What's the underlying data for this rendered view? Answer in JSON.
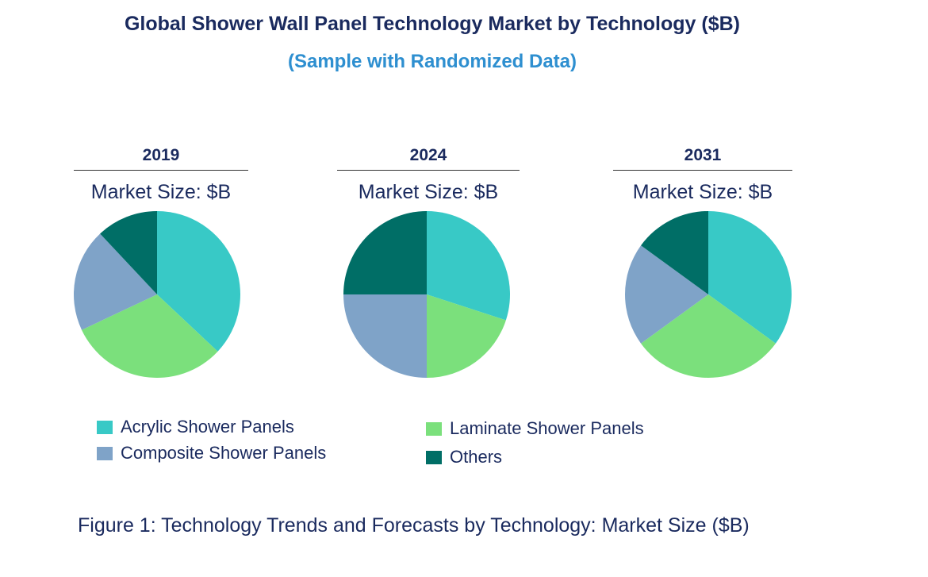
{
  "title": "Global Shower Wall Panel Technology Market by Technology ($B)",
  "subtitle": "(Sample with Randomized Data)",
  "caption": "Figure 1: Technology Trends and Forecasts by Technology: Market Size ($B)",
  "colors": {
    "acrylic": "#38c9c6",
    "laminate": "#7be07c",
    "composite": "#7fa3c8",
    "others": "#006e66",
    "title": "#1a2a5e",
    "subtitle": "#2e8fd0"
  },
  "legend": [
    {
      "label": "Acrylic Shower Panels",
      "key": "acrylic"
    },
    {
      "label": "Composite Shower Panels",
      "key": "composite"
    },
    {
      "label": "Laminate Shower Panels",
      "key": "laminate"
    },
    {
      "label": "Others",
      "key": "others"
    }
  ],
  "chart_data": [
    {
      "type": "pie",
      "title": "2019",
      "subtitle": "Market Size: $B",
      "categories": [
        "Acrylic Shower Panels",
        "Laminate Shower Panels",
        "Composite Shower Panels",
        "Others"
      ],
      "values": [
        37,
        31,
        20,
        12
      ]
    },
    {
      "type": "pie",
      "title": "2024",
      "subtitle": "Market Size: $B",
      "categories": [
        "Acrylic Shower Panels",
        "Laminate Shower Panels",
        "Composite Shower Panels",
        "Others"
      ],
      "values": [
        30,
        20,
        25,
        25
      ]
    },
    {
      "type": "pie",
      "title": "2031",
      "subtitle": "Market Size: $B",
      "categories": [
        "Acrylic Shower Panels",
        "Laminate Shower Panels",
        "Composite Shower Panels",
        "Others"
      ],
      "values": [
        35,
        30,
        20,
        15
      ]
    }
  ]
}
